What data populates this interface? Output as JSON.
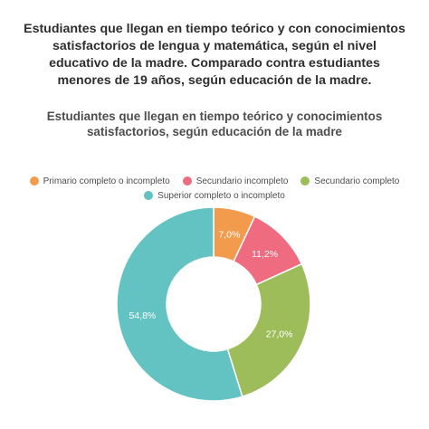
{
  "headline": {
    "lines": [
      "Estudiantes que llegan en tiempo teórico y con conocimientos",
      "satisfactorios de lengua y matemática, según el nivel",
      "educativo de la madre.  Comparado contra estudiantes",
      "menores de 19 años, según educación de la madre."
    ]
  },
  "chart_data": {
    "type": "pie",
    "donut": true,
    "title_lines": [
      "Estudiantes que llegan en tiempo teórico y conocimientos",
      "satisfactorios, según educación de la madre"
    ],
    "legend_position": "top",
    "categories": [
      "Primario completo o incompleto",
      "Secundario incompleto",
      "Secundario completo",
      "Superior completo o incompleto"
    ],
    "values": [
      7.0,
      11.2,
      27.0,
      54.8
    ],
    "labels": [
      "7,0%",
      "11,2%",
      "27,0%",
      "54,8%"
    ],
    "colors": [
      "#f29b4c",
      "#ee6b80",
      "#9dbd5a",
      "#63c2c2"
    ]
  }
}
